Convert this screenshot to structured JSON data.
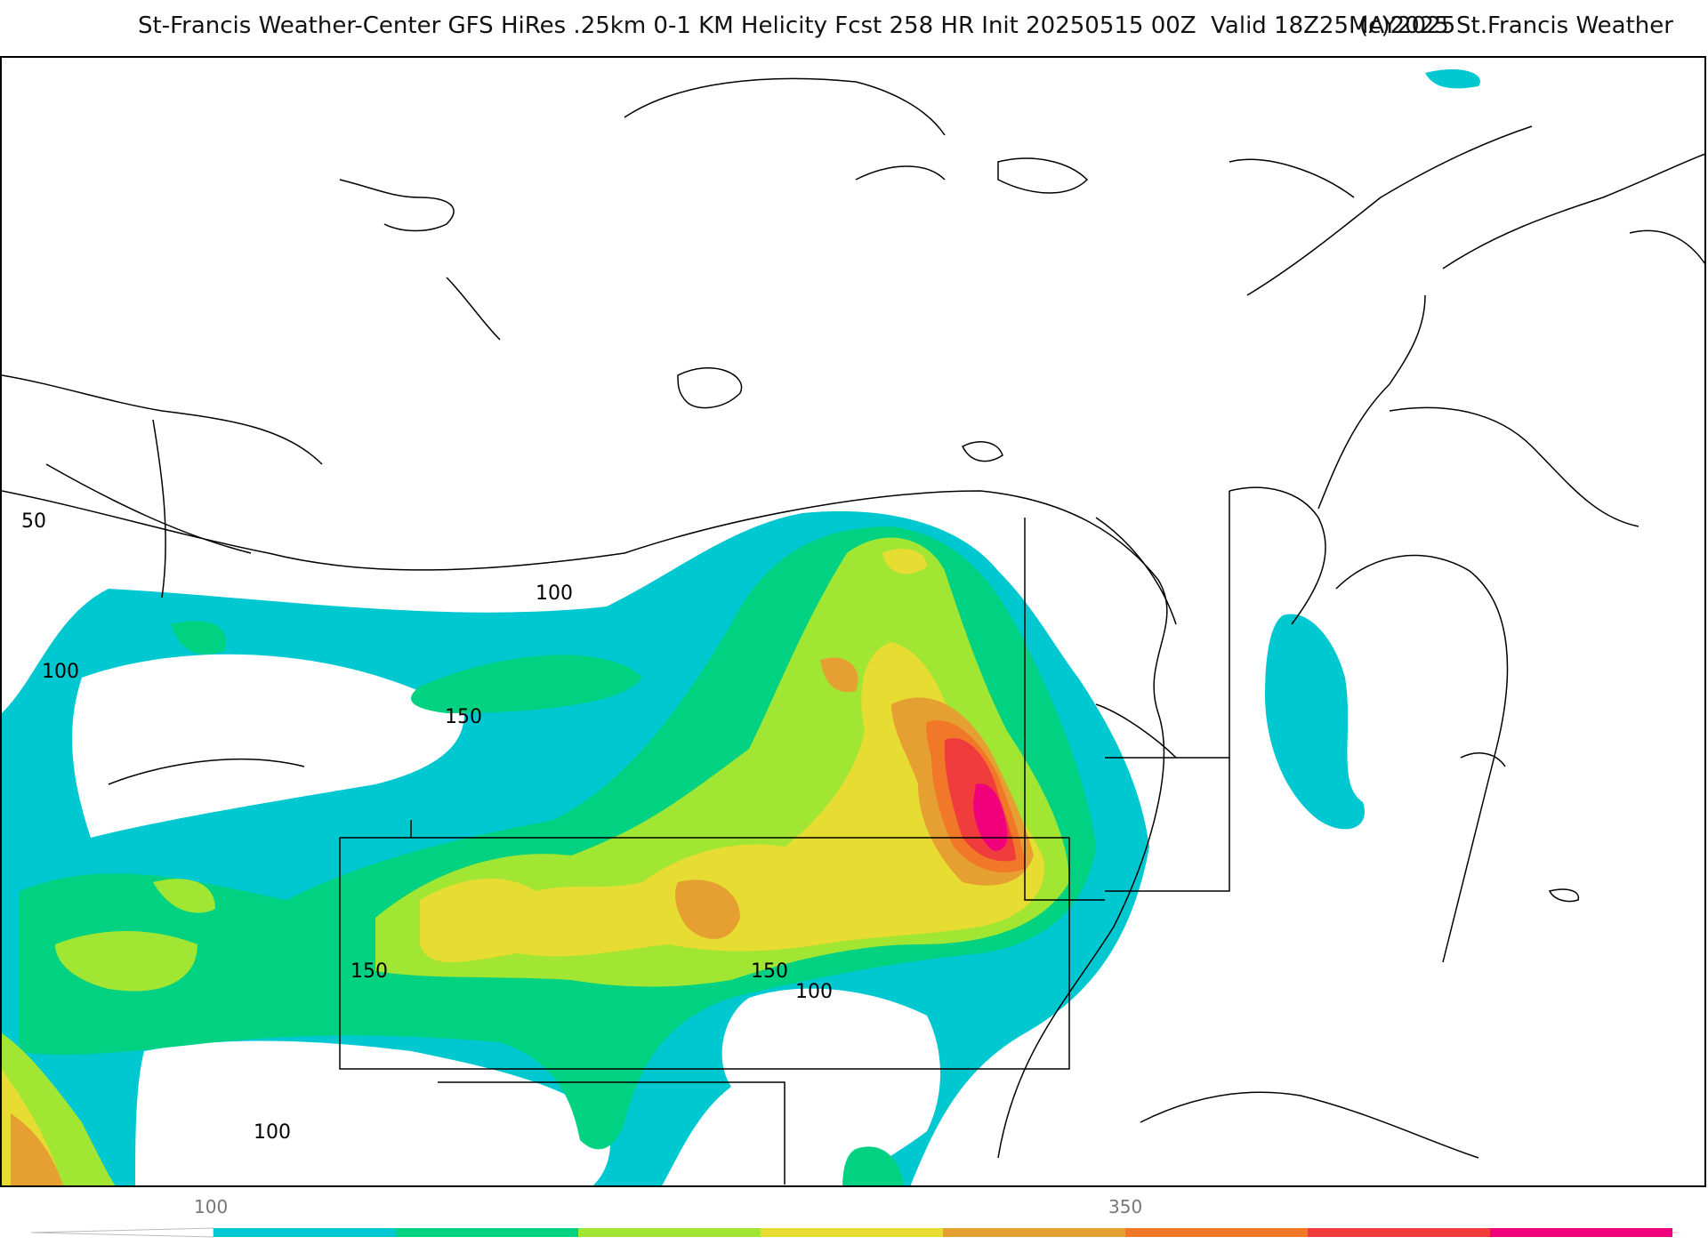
{
  "header": {
    "title": "St-Francis Weather-Center GFS HiRes .25km 0-1 KM Helicity Fcst 258 HR Init 20250515 00Z  Valid 18Z25MAY2025",
    "copyright": "(c)2025 St.Francis Weather"
  },
  "map": {
    "contour_labels": [
      "50",
      "100",
      "100",
      "150",
      "150",
      "150",
      "100",
      "100"
    ]
  },
  "legend": {
    "tick_labels": [
      "100",
      "350"
    ],
    "colors": [
      "#00c8d0",
      "#00d282",
      "#a0e632",
      "#e6dc32",
      "#e6a032",
      "#f07828",
      "#f03c3c",
      "#f0007a"
    ]
  }
}
